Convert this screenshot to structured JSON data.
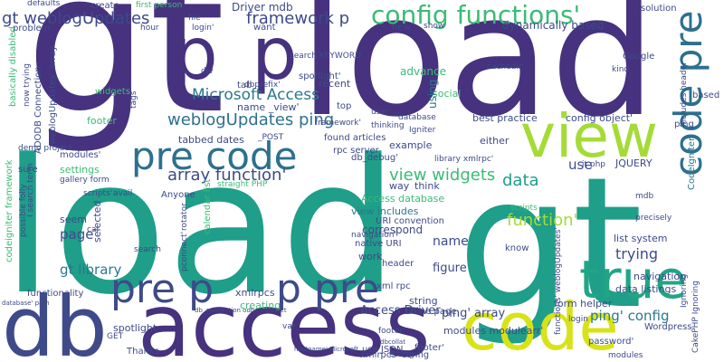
{
  "words": [
    {
      "text": "gt",
      "color": "#46327e"
    },
    {
      "text": "load",
      "color": "#1f9e89"
    },
    {
      "text": "p",
      "color": "#46327e"
    },
    {
      "text": "p",
      "color": "#46327e"
    },
    {
      "text": "load",
      "color": "#46327e"
    },
    {
      "text": "gt",
      "color": "#1f9e89"
    },
    {
      "text": "db",
      "color": "#3e4a89"
    },
    {
      "text": "access",
      "color": "#46327e"
    },
    {
      "text": "code",
      "color": "#d8e219"
    },
    {
      "text": "true",
      "color": "#21a585"
    },
    {
      "text": "view",
      "color": "#a5db36"
    },
    {
      "text": "pre code",
      "color": "#2d708e"
    },
    {
      "text": "pre p",
      "color": "#3e4a89"
    },
    {
      "text": "p pre",
      "color": "#3e4a89"
    },
    {
      "text": "code pre",
      "color": "#2d708e"
    },
    {
      "text": "config functions'",
      "color": "#3bbb75"
    },
    {
      "text": "gt weblogUpdates",
      "color": "#3e4a89"
    },
    {
      "text": "framework p",
      "color": "#3e4a89"
    },
    {
      "text": "weblogUpdates ping",
      "color": "#2d708e"
    },
    {
      "text": "Microsoft Access",
      "color": "#2a788e"
    },
    {
      "text": "array function'",
      "color": "#3e4a89"
    },
    {
      "text": "view widgets",
      "color": "#3bbb75"
    },
    {
      "text": "data",
      "color": "#1f9e89"
    },
    {
      "text": "function'",
      "color": "#a5db36"
    },
    {
      "text": "Driver mdb",
      "color": "#3e4a89"
    },
    {
      "text": "page",
      "color": "#3e4a89"
    },
    {
      "text": "gt library",
      "color": "#2a788e"
    },
    {
      "text": "ping' config",
      "color": "#2a788e"
    },
    {
      "text": "ping' array",
      "color": "#3e4a89"
    },
    {
      "text": "Access Driver",
      "color": "#3e4a89"
    },
    {
      "text": "trying",
      "color": "#3e4a89"
    },
    {
      "text": "use",
      "color": "#3e4a89"
    },
    {
      "text": "name",
      "color": "#3e4a89"
    },
    {
      "text": "figure",
      "color": "#3e4a89"
    },
    {
      "text": "xmlrpcs",
      "color": "#3e4a89"
    },
    {
      "text": "data listings",
      "color": "#3e4a89"
    },
    {
      "text": "list system",
      "color": "#3e4a89"
    },
    {
      "text": "dynamically based",
      "color": "#3e4a89"
    },
    {
      "text": "advance",
      "color": "#3bbb75"
    },
    {
      "text": "best practice",
      "color": "#3e4a89"
    },
    {
      "text": "config object'",
      "color": "#3e4a89"
    },
    {
      "text": "tabbed dates",
      "color": "#3e4a89"
    },
    {
      "text": "name _view'",
      "color": "#3e4a89"
    },
    {
      "text": "seem",
      "color": "#3e4a89"
    },
    {
      "text": "selected",
      "color": "#3e4a89"
    },
    {
      "text": "settings",
      "color": "#3bbb75"
    },
    {
      "text": "footer",
      "color": "#3bbb75"
    },
    {
      "text": "widgets",
      "color": "#3bbb75"
    },
    {
      "text": "creating",
      "color": "#3bbb75"
    },
    {
      "text": "string",
      "color": "#3e4a89"
    },
    {
      "text": "home page",
      "color": "#3e4a89"
    },
    {
      "text": "use JSON",
      "color": "#3e4a89"
    },
    {
      "text": "xmlrpcs' config",
      "color": "#3e4a89"
    },
    {
      "text": "modules modulearr'",
      "color": "#3e4a89"
    },
    {
      "text": "form helper",
      "color": "#3e4a89"
    },
    {
      "text": "navigation",
      "color": "#3e4a89"
    },
    {
      "text": "correspond",
      "color": "#3e4a89"
    },
    {
      "text": "example",
      "color": "#3e4a89"
    },
    {
      "text": "JQUERY",
      "color": "#3e4a89"
    },
    {
      "text": "spotlight",
      "color": "#3e4a89"
    },
    {
      "text": "Thanks",
      "color": "#3e4a89"
    },
    {
      "text": "recent",
      "color": "#3e4a89"
    },
    {
      "text": "using",
      "color": "#2a788e"
    },
    {
      "text": "social",
      "color": "#3bbb75"
    },
    {
      "text": "solution",
      "color": "#3e4a89"
    },
    {
      "text": "Google",
      "color": "#3e4a89"
    },
    {
      "text": "based",
      "color": "#3e4a89"
    },
    {
      "text": "ping",
      "color": "#3e4a89"
    },
    {
      "text": "know",
      "color": "#3e4a89"
    },
    {
      "text": "work",
      "color": "#3e4a89"
    },
    {
      "text": "way",
      "color": "#3e4a89"
    },
    {
      "text": "think",
      "color": "#3e4a89"
    },
    {
      "text": "either",
      "color": "#3e4a89"
    },
    {
      "text": "db_debug'",
      "color": "#3e4a89"
    },
    {
      "text": "URI convention",
      "color": "#3e4a89"
    },
    {
      "text": "native URI",
      "color": "#3e4a89"
    },
    {
      "text": "calendar list",
      "color": "#3bbb75"
    },
    {
      "text": "Access database",
      "color": "#3bbb75"
    },
    {
      "text": "Anyone",
      "color": "#3e4a89"
    },
    {
      "text": "view includes",
      "color": "#2a788e"
    },
    {
      "text": "Wordpress",
      "color": "#3e4a89"
    },
    {
      "text": "password'",
      "color": "#3e4a89"
    },
    {
      "text": "problem",
      "color": "#3e4a89"
    },
    {
      "text": "create",
      "color": "#3e4a89"
    },
    {
      "text": "defaults",
      "color": "#3e4a89"
    },
    {
      "text": "dbprefix'",
      "color": "#3e4a89"
    },
    {
      "text": "spotlight'",
      "color": "#3e4a89"
    },
    {
      "text": "footer'",
      "color": "#3e4a89"
    },
    {
      "text": "xml rpc",
      "color": "#3e4a89"
    },
    {
      "text": "header",
      "color": "#3e4a89"
    },
    {
      "text": "CodeIgniter",
      "color": "#2a788e"
    },
    {
      "text": "basically disabled",
      "color": "#3bbb75"
    },
    {
      "text": "codeigniter framework",
      "color": "#3bbb75"
    },
    {
      "text": "ADODB Connection",
      "color": "#3e4a89"
    },
    {
      "text": "weblogUpdates' array",
      "color": "#3e4a89"
    },
    {
      "text": "modules'",
      "color": "#3e4a89"
    },
    {
      "text": "demo project",
      "color": "#3e4a89"
    },
    {
      "text": "gallery form",
      "color": "#3e4a89"
    },
    {
      "text": "sure",
      "color": "#3e4a89"
    },
    {
      "text": "cal",
      "color": "#3e4a89"
    },
    {
      "text": "functionality",
      "color": "#3e4a89"
    },
    {
      "text": "GET",
      "color": "#3e4a89"
    },
    {
      "text": "navigation'",
      "color": "#3e4a89"
    },
    {
      "text": "rpc server",
      "color": "#3e4a89"
    },
    {
      "text": "found articles",
      "color": "#3e4a89"
    },
    {
      "text": "_POST",
      "color": "#3e4a89"
    },
    {
      "text": "tab",
      "color": "#3e4a89"
    },
    {
      "text": "want",
      "color": "#3e4a89"
    },
    {
      "text": "new",
      "color": "#3e4a89"
    },
    {
      "text": "show",
      "color": "#3e4a89"
    },
    {
      "text": "hour",
      "color": "#3e4a89"
    },
    {
      "text": "first person",
      "color": "#3bbb75"
    },
    {
      "text": "file",
      "color": "#3e4a89"
    },
    {
      "text": "login'",
      "color": "#3e4a89"
    },
    {
      "text": "search KEYWORD",
      "color": "#3e4a89"
    },
    {
      "text": "div",
      "color": "#3e4a89"
    },
    {
      "text": "top",
      "color": "#3e4a89"
    },
    {
      "text": "user",
      "color": "#3e4a89"
    },
    {
      "text": "thinking",
      "color": "#3e4a89"
    },
    {
      "text": "database",
      "color": "#3e4a89"
    },
    {
      "text": "Igniter",
      "color": "#3e4a89"
    },
    {
      "text": "library xmlrpc'",
      "color": "#3e4a89"
    },
    {
      "text": "it php",
      "color": "#3e4a89"
    },
    {
      "text": "mdb",
      "color": "#3e4a89"
    },
    {
      "text": "precisely",
      "color": "#3e4a89"
    },
    {
      "text": "scripts",
      "color": "#3bbb75"
    },
    {
      "text": "modules",
      "color": "#3e4a89"
    },
    {
      "text": "footer'",
      "color": "#3e4a89"
    },
    {
      "text": "var",
      "color": "#3e4a89"
    },
    {
      "text": "avail",
      "color": "#3e4a89"
    },
    {
      "text": "search",
      "color": "#3e4a89"
    },
    {
      "text": "rotator",
      "color": "#3e4a89"
    },
    {
      "text": "straight PHP",
      "color": "#3bbb75"
    },
    {
      "text": "kind",
      "color": "#3e4a89"
    },
    {
      "text": "includes header'",
      "color": "#3e4a89"
    },
    {
      "text": "login",
      "color": "#3e4a89"
    },
    {
      "text": "Ignoring",
      "color": "#3e4a89"
    },
    {
      "text": "config",
      "color": "#3e4a89"
    },
    {
      "text": "cachedir'",
      "color": "#3e4a89"
    },
    {
      "text": "tags",
      "color": "#3e4a89"
    },
    {
      "text": "framework'",
      "color": "#3e4a89"
    },
    {
      "text": "now trying",
      "color": "#3e4a89"
    },
    {
      "text": "possible folly",
      "color": "#3e4a89"
    },
    {
      "text": "I search term",
      "color": "#3e4a89"
    },
    {
      "text": "functions' weblogUpdates'",
      "color": "#3e4a89"
    },
    {
      "text": "scripts'",
      "color": "#3e4a89"
    },
    {
      "text": "pconnect'",
      "color": "#3e4a89"
    },
    {
      "text": "CakePHP Ignoring",
      "color": "#3e4a89"
    },
    {
      "text": "dbcollat",
      "color": "#3e4a89"
    },
    {
      "text": "hostname' Microsoft",
      "color": "#3e4a89"
    },
    {
      "text": "db_connection odbc_connect",
      "color": "#3e4a89"
    },
    {
      "text": "database' path",
      "color": "#3e4a89"
    }
  ]
}
